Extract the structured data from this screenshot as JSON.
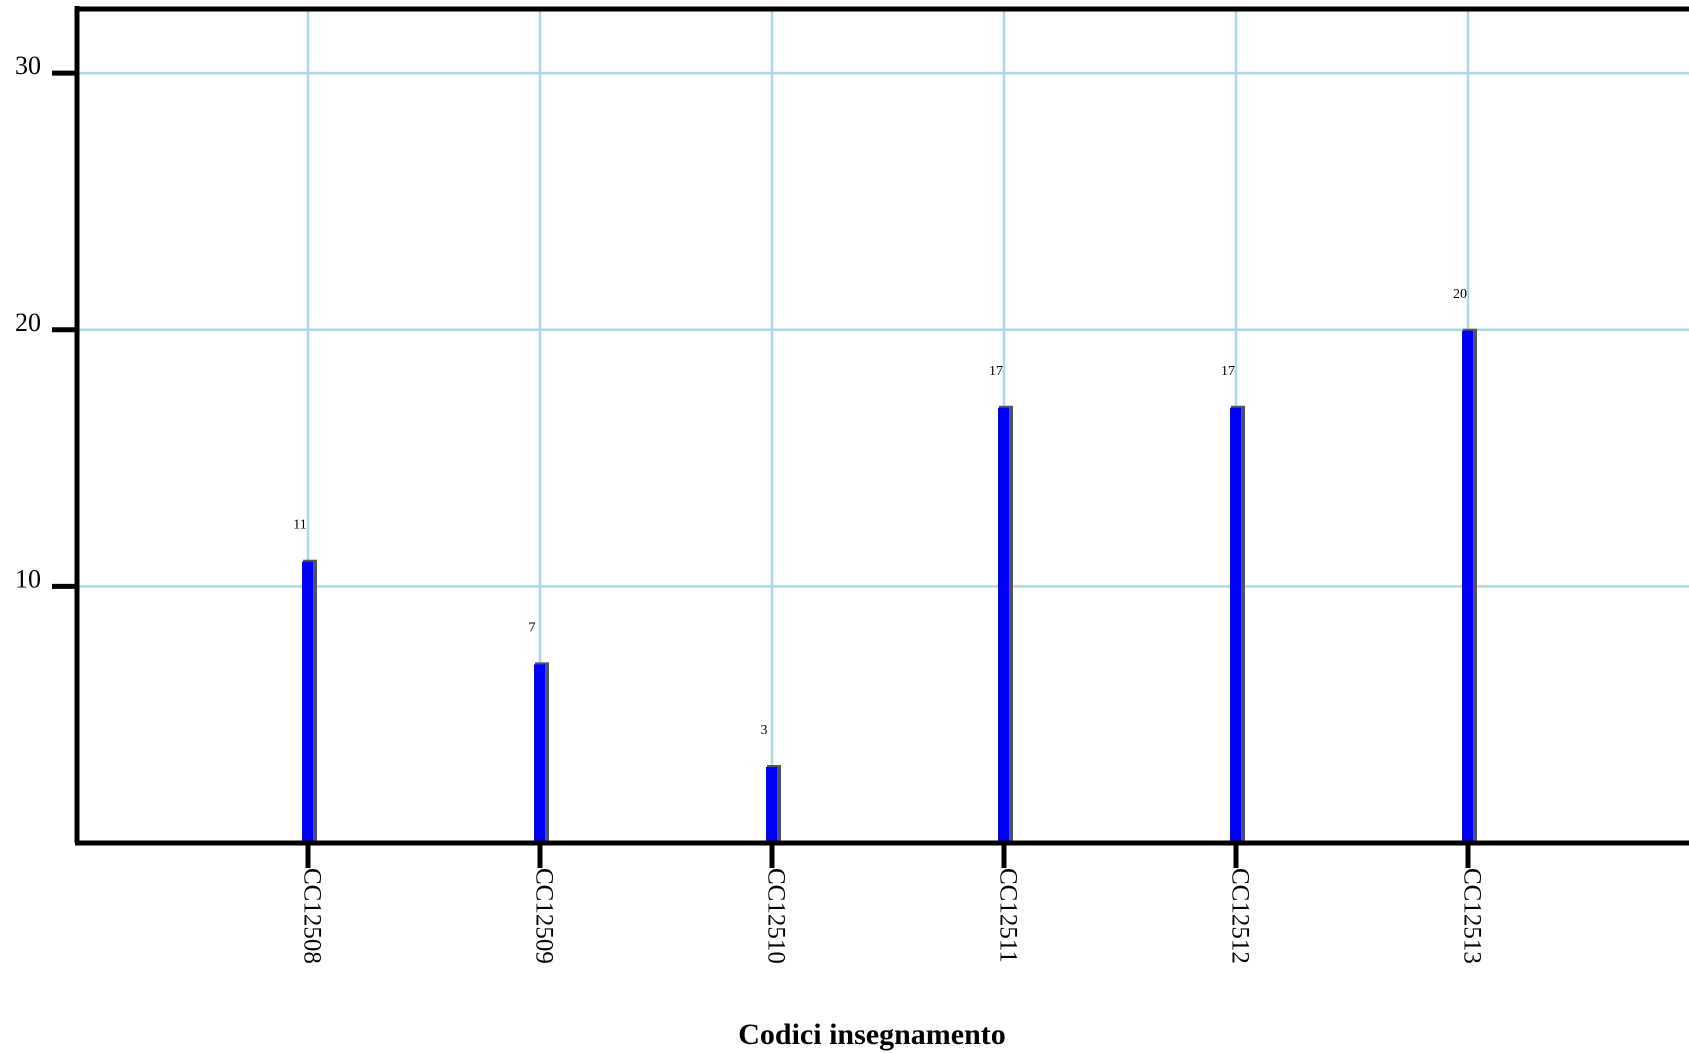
{
  "chart_data": {
    "type": "bar",
    "title": "",
    "xlabel": "Codici insegnamento",
    "ylabel": "",
    "categories": [
      "CC12508",
      "CC12509",
      "CC12510",
      "CC12511",
      "CC12512",
      "CC12513"
    ],
    "values": [
      11,
      7,
      3,
      17,
      17,
      20
    ],
    "ylim": [
      0,
      32.5
    ],
    "yticks": [
      10,
      20,
      30
    ],
    "grid": true,
    "colors": {
      "bar": "#0000ff",
      "bar_shadow": "#555555",
      "grid": "#add8e6",
      "axis": "#000000"
    }
  }
}
